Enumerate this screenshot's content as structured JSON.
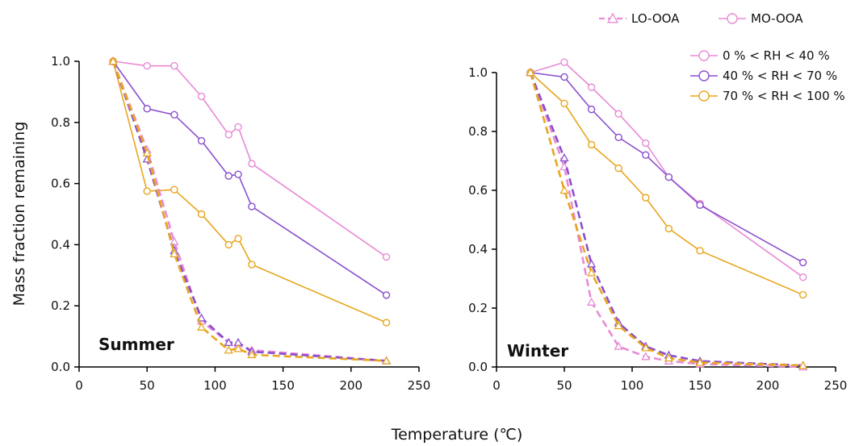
{
  "chart_data": [
    {
      "type": "line",
      "title": "Summer",
      "xlabel": "Temperature (℃)",
      "ylabel": "Mass fraction remaining",
      "xlim": [
        0,
        250
      ],
      "ylim": [
        0,
        1.0
      ],
      "xticks": [
        "0",
        "50",
        "100",
        "150",
        "200",
        "250"
      ],
      "yticks": [
        "0.0",
        "0.2",
        "0.4",
        "0.6",
        "0.8",
        "1.0"
      ],
      "series": [
        {
          "name": "MO-OOA 0%<RH<40%",
          "color": "#e88ad6",
          "style": "solid",
          "marker": "circle",
          "x": [
            25,
            50,
            70,
            90,
            110,
            117,
            127,
            226
          ],
          "y": [
            1.0,
            0.985,
            0.985,
            0.885,
            0.76,
            0.785,
            0.665,
            0.36
          ]
        },
        {
          "name": "MO-OOA 40%<RH<70%",
          "color": "#8a4fcf",
          "style": "solid",
          "marker": "circle",
          "x": [
            25,
            50,
            70,
            90,
            110,
            117,
            127,
            226
          ],
          "y": [
            1.0,
            0.845,
            0.825,
            0.74,
            0.625,
            0.63,
            0.525,
            0.235
          ]
        },
        {
          "name": "MO-OOA 70%<RH<100%",
          "color": "#e8a61e",
          "style": "solid",
          "marker": "circle",
          "x": [
            25,
            50,
            70,
            90,
            110,
            117,
            127,
            226
          ],
          "y": [
            1.0,
            0.575,
            0.58,
            0.5,
            0.4,
            0.42,
            0.335,
            0.145
          ]
        },
        {
          "name": "LO-OOA 0%<RH<40%",
          "color": "#e88ad6",
          "style": "dashed",
          "marker": "triangle",
          "x": [
            25,
            50,
            70,
            90,
            110,
            117,
            127,
            226
          ],
          "y": [
            1.0,
            0.71,
            0.41,
            0.15,
            0.08,
            0.075,
            0.055,
            0.02
          ]
        },
        {
          "name": "LO-OOA 40%<RH<70%",
          "color": "#8a4fcf",
          "style": "dashed",
          "marker": "triangle",
          "x": [
            25,
            50,
            70,
            90,
            110,
            117,
            127,
            226
          ],
          "y": [
            1.0,
            0.68,
            0.38,
            0.16,
            0.08,
            0.08,
            0.05,
            0.02
          ]
        },
        {
          "name": "LO-OOA 70%<RH<100%",
          "color": "#e8a61e",
          "style": "dashed",
          "marker": "triangle",
          "x": [
            25,
            50,
            70,
            90,
            110,
            117,
            127,
            226
          ],
          "y": [
            1.0,
            0.7,
            0.37,
            0.13,
            0.055,
            0.06,
            0.04,
            0.02
          ]
        }
      ]
    },
    {
      "type": "line",
      "title": "Winter",
      "xlabel": "Temperature (℃)",
      "ylabel": "",
      "xlim": [
        0,
        250
      ],
      "ylim": [
        0,
        1.0
      ],
      "xticks": [
        "0",
        "50",
        "100",
        "150",
        "200",
        "250"
      ],
      "yticks": [
        "0.0",
        "0.2",
        "0.4",
        "0.6",
        "0.8",
        "1.0"
      ],
      "series": [
        {
          "name": "MO-OOA 0%<RH<40%",
          "color": "#e88ad6",
          "style": "solid",
          "marker": "circle",
          "x": [
            25,
            50,
            70,
            90,
            110,
            127,
            150,
            226
          ],
          "y": [
            1.0,
            1.035,
            0.95,
            0.86,
            0.76,
            0.645,
            0.555,
            0.305
          ]
        },
        {
          "name": "MO-OOA 40%<RH<70%",
          "color": "#8a4fcf",
          "style": "solid",
          "marker": "circle",
          "x": [
            25,
            50,
            70,
            90,
            110,
            127,
            150,
            226
          ],
          "y": [
            1.0,
            0.985,
            0.875,
            0.78,
            0.72,
            0.645,
            0.55,
            0.355
          ]
        },
        {
          "name": "MO-OOA 70%<RH<100%",
          "color": "#e8a61e",
          "style": "solid",
          "marker": "circle",
          "x": [
            25,
            50,
            70,
            90,
            110,
            127,
            150,
            226
          ],
          "y": [
            1.0,
            0.895,
            0.755,
            0.675,
            0.575,
            0.47,
            0.395,
            0.245
          ]
        },
        {
          "name": "LO-OOA 0%<RH<40%",
          "color": "#e88ad6",
          "style": "dashed",
          "marker": "triangle",
          "x": [
            25,
            50,
            70,
            90,
            110,
            127,
            150,
            226
          ],
          "y": [
            1.0,
            0.68,
            0.22,
            0.07,
            0.035,
            0.02,
            0.01,
            0.0
          ]
        },
        {
          "name": "LO-OOA 40%<RH<70%",
          "color": "#8a4fcf",
          "style": "dashed",
          "marker": "triangle",
          "x": [
            25,
            50,
            70,
            90,
            110,
            127,
            150,
            226
          ],
          "y": [
            1.0,
            0.71,
            0.35,
            0.15,
            0.07,
            0.04,
            0.02,
            0.005
          ]
        },
        {
          "name": "LO-OOA 70%<RH<100%",
          "color": "#e8a61e",
          "style": "dashed",
          "marker": "triangle",
          "x": [
            25,
            50,
            70,
            90,
            110,
            127,
            150,
            226
          ],
          "y": [
            1.0,
            0.6,
            0.32,
            0.14,
            0.065,
            0.03,
            0.015,
            0.005
          ]
        }
      ]
    }
  ],
  "legend": {
    "types": [
      {
        "label": "LO-OOA",
        "style": "dashed",
        "marker": "triangle",
        "color": "#e88ad6"
      },
      {
        "label": "MO-OOA",
        "style": "solid",
        "marker": "circle",
        "color": "#e88ad6"
      }
    ],
    "rh": [
      {
        "label": "0 % < RH < 40 %",
        "color": "#e88ad6"
      },
      {
        "label": "40 % < RH < 70 %",
        "color": "#8a4fcf"
      },
      {
        "label": "70 % < RH < 100 %",
        "color": "#e8a61e"
      }
    ]
  },
  "shared_xlabel": "Temperature (℃)"
}
